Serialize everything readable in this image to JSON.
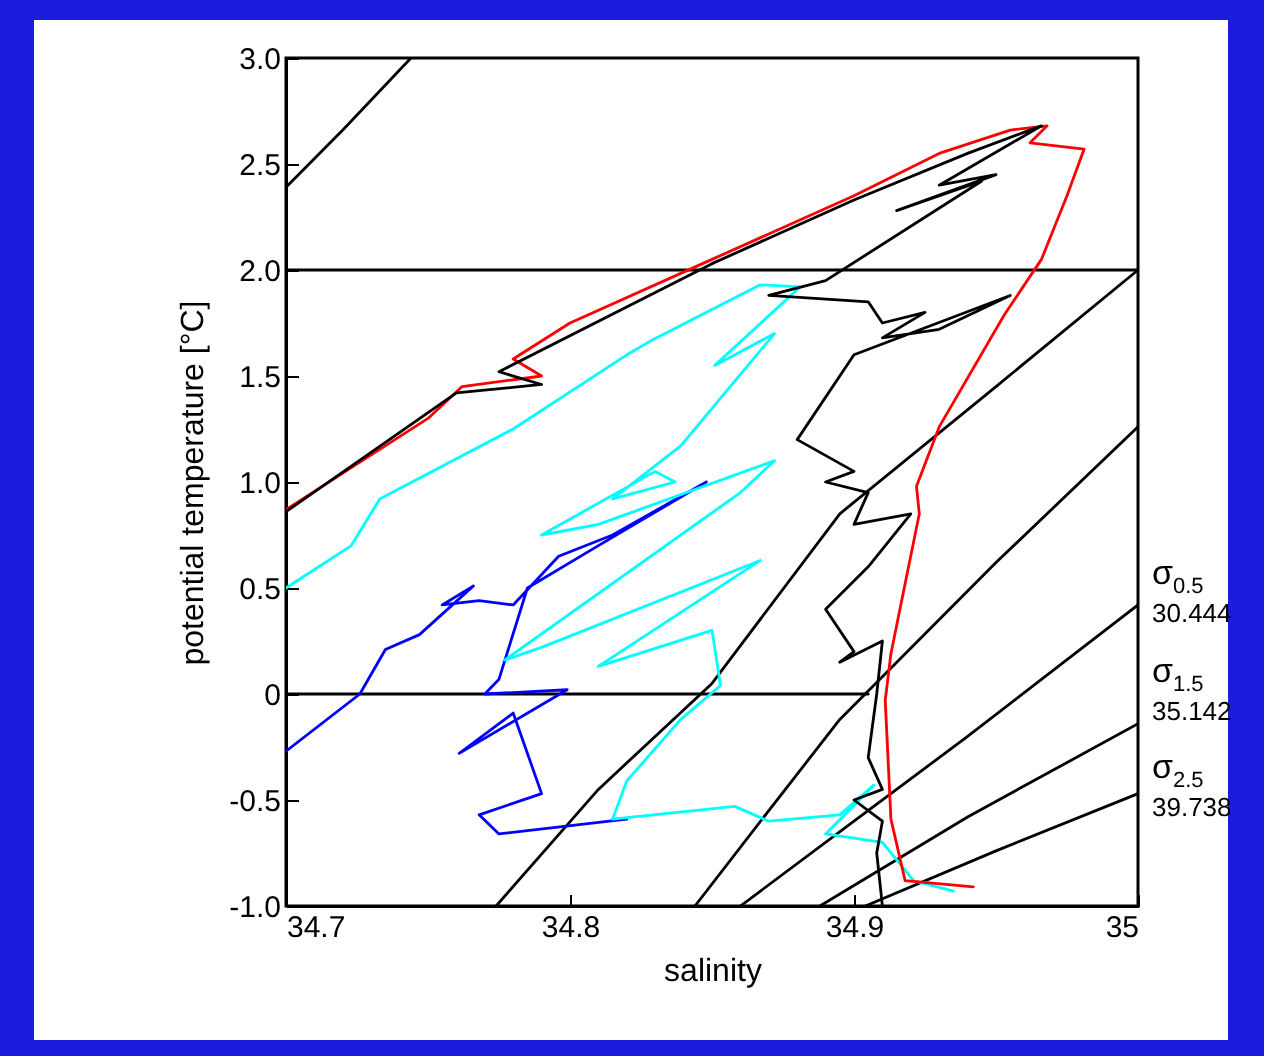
{
  "chart_data": {
    "type": "line",
    "xlabel": "salinity",
    "ylabel": "potential temperature [°C]",
    "xlim": [
      34.7,
      35
    ],
    "ylim": [
      -1,
      3
    ],
    "xticks": [
      34.7,
      34.8,
      34.9,
      35
    ],
    "yticks": [
      {
        "value": -1,
        "label": "-1.0"
      },
      -0.5,
      0,
      0.5,
      {
        "value": 1,
        "label": "1.0"
      },
      1.5,
      {
        "value": 2,
        "label": "2.0"
      },
      2.5,
      {
        "value": 3,
        "label": "3.0"
      }
    ],
    "series": [
      {
        "color": "#000000",
        "x": [
          34.7,
          34.72,
          34.744
        ],
        "values": [
          2.39,
          2.66,
          3.0
        ]
      },
      {
        "color": "#000000",
        "x": [
          34.774,
          34.81,
          34.85,
          34.895,
          34.95,
          35.0
        ],
        "values": [
          -1.0,
          -0.45,
          0.05,
          0.85,
          1.45,
          2.0
        ]
      },
      {
        "color": "#000000",
        "x": [
          34.844,
          34.87,
          34.895,
          34.95,
          35.0
        ],
        "values": [
          -1.0,
          -0.55,
          -0.12,
          0.62,
          1.26
        ]
      },
      {
        "color": "#000000",
        "x": [
          34.86,
          34.9,
          34.94,
          35.0
        ],
        "values": [
          -1.0,
          -0.6,
          -0.2,
          0.42
        ]
      },
      {
        "color": "#000000",
        "x": [
          34.888,
          34.94,
          35.0
        ],
        "values": [
          -1.0,
          -0.58,
          -0.14
        ]
      },
      {
        "color": "#000000",
        "x": [
          34.904,
          34.95,
          35.0
        ],
        "values": [
          -1.0,
          -0.74,
          -0.47
        ]
      },
      {
        "color": "#000000",
        "x": [
          34.7,
          35.0
        ],
        "values": [
          2.0,
          2.0
        ]
      },
      {
        "color": "#000000",
        "x": [
          34.7,
          34.905
        ],
        "values": [
          0.0,
          0.0
        ]
      },
      {
        "color": "#0000ff",
        "x": [
          34.7,
          34.726,
          34.735,
          34.747,
          34.766,
          34.755,
          34.768,
          34.78,
          34.796,
          34.815,
          34.848,
          34.81,
          34.785,
          34.775,
          34.77,
          34.799,
          34.761,
          34.78,
          34.79,
          34.768,
          34.775,
          34.82
        ],
        "values": [
          -0.27,
          0.0,
          0.21,
          0.28,
          0.51,
          0.42,
          0.44,
          0.42,
          0.65,
          0.75,
          1.0,
          0.7,
          0.5,
          0.07,
          0.0,
          0.02,
          -0.28,
          -0.09,
          -0.47,
          -0.57,
          -0.66,
          -0.59
        ]
      },
      {
        "color": "#00ffff",
        "x": [
          34.7,
          34.723,
          34.733,
          34.78,
          34.82,
          34.829,
          34.867,
          34.881,
          34.851,
          34.872,
          34.839,
          34.815,
          34.837,
          34.83,
          34.79,
          34.81,
          34.872,
          34.86,
          34.777,
          34.79,
          34.867,
          34.81,
          34.85,
          34.853,
          34.839,
          34.82,
          34.815,
          34.858,
          34.87,
          34.895,
          34.907,
          34.89,
          34.91,
          34.921,
          34.935
        ],
        "values": [
          0.5,
          0.7,
          0.92,
          1.25,
          1.6,
          1.67,
          1.93,
          1.92,
          1.55,
          1.7,
          1.17,
          0.92,
          1.0,
          1.05,
          0.75,
          0.8,
          1.1,
          0.95,
          0.16,
          0.22,
          0.63,
          0.13,
          0.3,
          0.04,
          -0.12,
          -0.41,
          -0.59,
          -0.53,
          -0.6,
          -0.57,
          -0.43,
          -0.66,
          -0.7,
          -0.88,
          -0.93
        ]
      },
      {
        "color": "#ff0000",
        "x": [
          34.7,
          34.75,
          34.762,
          34.79,
          34.78,
          34.8,
          34.85,
          34.9,
          34.93,
          34.955,
          34.968,
          34.962,
          34.981,
          34.975,
          34.966,
          34.953,
          34.93,
          34.922,
          34.923,
          34.913,
          34.911,
          34.913,
          34.918,
          34.942
        ],
        "values": [
          0.87,
          1.3,
          1.45,
          1.5,
          1.58,
          1.75,
          2.05,
          2.35,
          2.55,
          2.66,
          2.68,
          2.6,
          2.57,
          2.35,
          2.05,
          1.79,
          1.26,
          0.98,
          0.85,
          0.19,
          -0.03,
          -0.59,
          -0.88,
          -0.91
        ]
      },
      {
        "color": "#000000",
        "x": [
          34.7,
          34.76,
          34.79,
          34.775,
          34.85,
          34.9,
          34.94,
          34.966,
          34.93,
          34.95,
          34.915,
          34.945,
          34.89,
          34.87,
          34.905,
          34.91,
          34.925,
          34.91,
          34.93,
          34.955,
          34.9,
          34.88,
          34.9,
          34.89,
          34.905,
          34.9,
          34.92,
          34.905,
          34.89,
          34.9,
          34.895,
          34.91,
          34.908,
          34.905,
          34.91,
          34.9,
          34.91,
          34.908,
          34.91
        ],
        "values": [
          0.86,
          1.42,
          1.46,
          1.52,
          2.03,
          2.33,
          2.55,
          2.68,
          2.4,
          2.45,
          2.28,
          2.42,
          1.95,
          1.88,
          1.85,
          1.75,
          1.8,
          1.68,
          1.72,
          1.88,
          1.6,
          1.2,
          1.05,
          1.0,
          0.95,
          0.8,
          0.85,
          0.6,
          0.4,
          0.2,
          0.15,
          0.25,
          0.0,
          -0.3,
          -0.45,
          -0.5,
          -0.6,
          -0.75,
          -1.0
        ]
      }
    ],
    "annotations": [
      "σ$_{0.5}$",
      "30.444",
      "σ$_{1.5}$",
      "35.142",
      "σ$_{2.5}$",
      "39.738"
    ]
  }
}
